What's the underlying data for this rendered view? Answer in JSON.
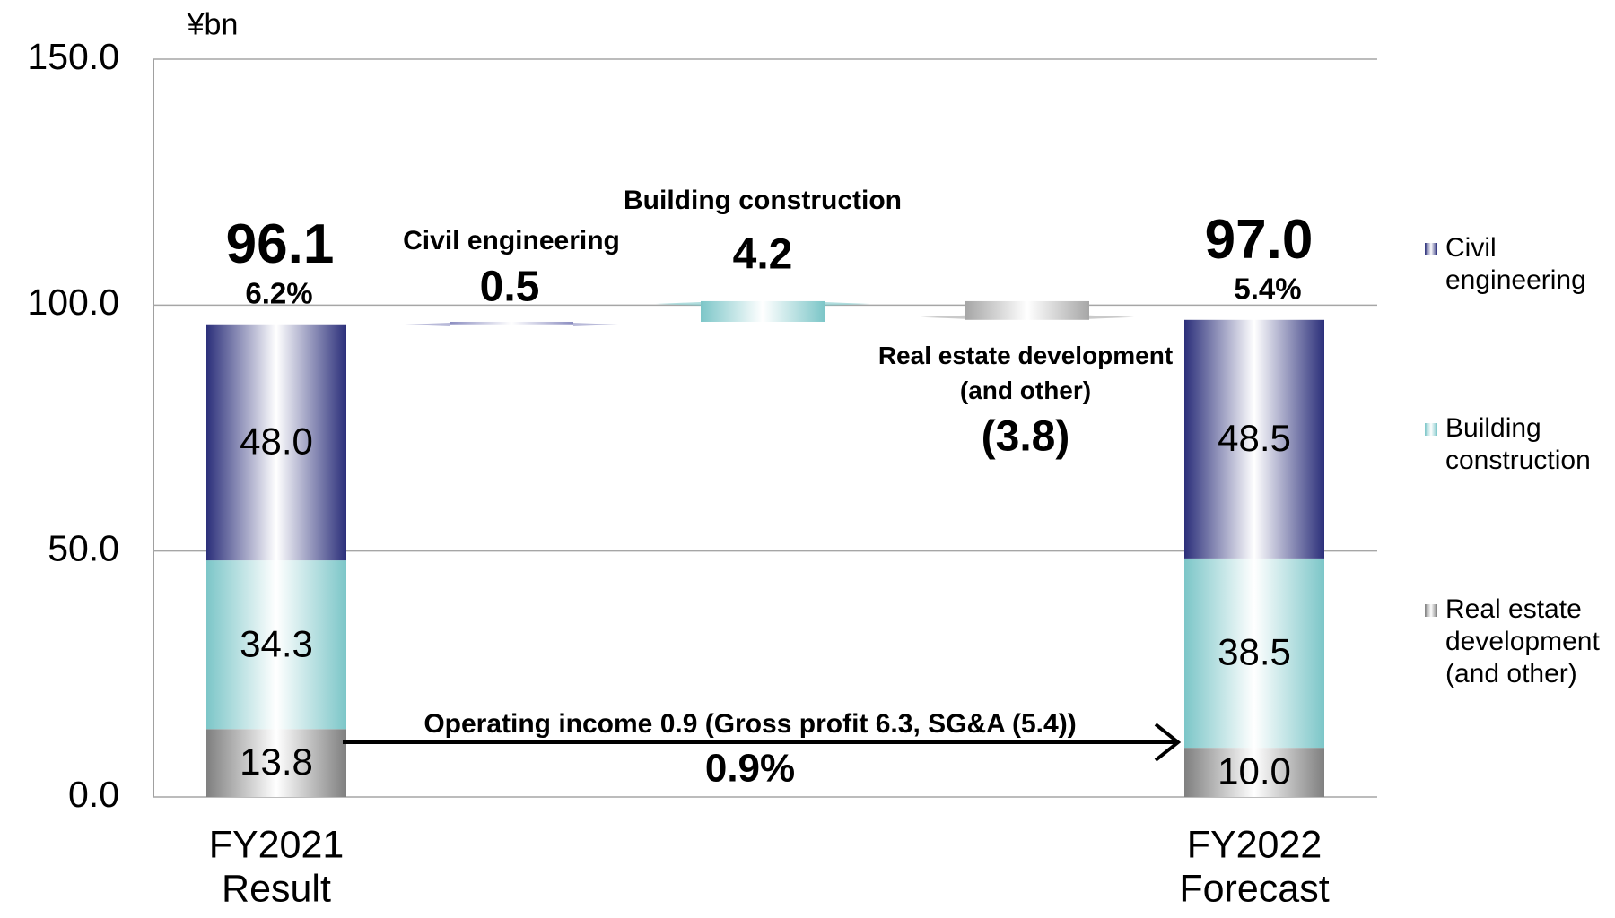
{
  "chart_data": {
    "type": "waterfall",
    "unit_label": "¥bn",
    "categories": [
      "FY2021 Result",
      "FY2022 Forecast"
    ],
    "ylim": [
      0,
      150
    ],
    "yticks": [
      {
        "value": 0,
        "label": "0.0"
      },
      {
        "value": 50,
        "label": "50.0"
      },
      {
        "value": 100,
        "label": "100.0"
      },
      {
        "value": 150,
        "label": "150.0"
      }
    ],
    "grid": true,
    "series": [
      {
        "name": "Civil engineering",
        "color": "#2b2f7a",
        "values": [
          48.0,
          48.5
        ],
        "value_labels": [
          "48.0",
          "48.5"
        ]
      },
      {
        "name": "Building construction",
        "color": "#7cc6c8",
        "values": [
          34.3,
          38.5
        ],
        "value_labels": [
          "34.3",
          "38.5"
        ]
      },
      {
        "name": "Real estate development (and other)",
        "color": "#7f7f7f",
        "values": [
          13.8,
          10.0
        ],
        "value_labels": [
          "13.8",
          "10.0"
        ]
      }
    ],
    "totals": {
      "values": [
        96.1,
        97.0
      ],
      "value_labels": [
        "96.1",
        "97.0"
      ]
    },
    "margins": {
      "values": [
        6.2,
        5.4
      ],
      "value_labels": [
        "6.2%",
        "5.4%"
      ]
    },
    "changes": [
      {
        "name": "Civil engineering",
        "value": 0.5,
        "color": "#8a8cc0"
      },
      {
        "name": "Building construction",
        "value": 4.2,
        "color": "#7cc6c8"
      },
      {
        "name": "Real estate development (and other)",
        "value": -3.8,
        "value_label": "(3.8)",
        "color": "#a6a6a6"
      }
    ],
    "annotations": [
      "Operating income 0.9 (Gross profit 6.3, SG&A (5.4))",
      "0.9%"
    ],
    "legend": "right"
  }
}
